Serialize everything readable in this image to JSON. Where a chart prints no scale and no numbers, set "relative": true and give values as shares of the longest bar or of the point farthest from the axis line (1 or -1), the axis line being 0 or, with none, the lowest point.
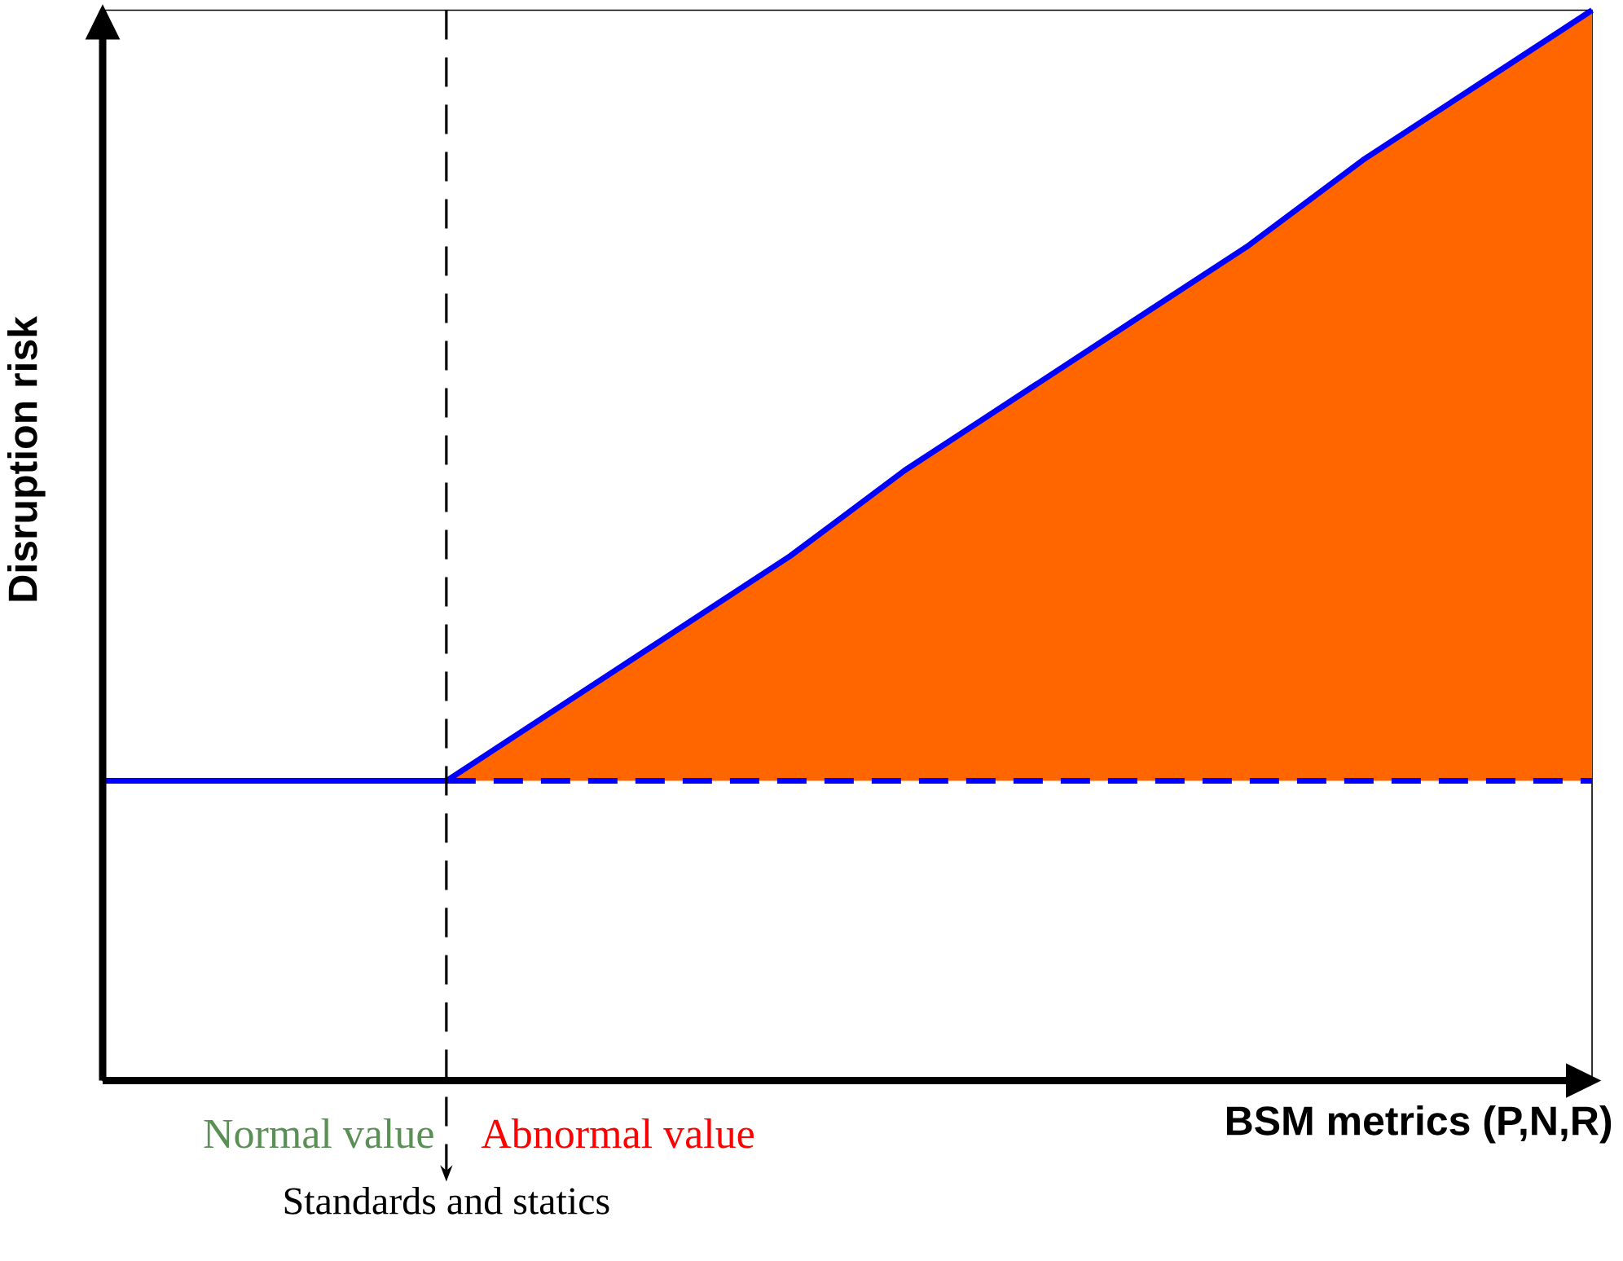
{
  "chart_data": {
    "type": "line",
    "relative": true,
    "xlabel": "BSM metrics (P,N,R)",
    "ylabel": "Disruption risk",
    "marker": "none",
    "categories": [
      null,
      null,
      null,
      null,
      null,
      null,
      null,
      null,
      null,
      null,
      null,
      null,
      null,
      null
    ],
    "series": [
      {
        "color": "#0000ff",
        "line_style": "solid",
        "values": [
          0.28,
          0.28,
          0.28,
          0.28,
          0.35,
          0.42,
          0.49,
          0.57,
          0.64,
          0.71,
          0.78,
          0.86,
          0.93,
          1
        ],
        "lower": [
          null,
          null,
          null,
          0.28,
          0.28,
          0.28,
          0.28,
          0.28,
          0.28,
          0.28,
          0.28,
          0.28,
          0.28,
          0.28
        ],
        "upper": [
          null,
          null,
          null,
          0.28,
          0.35,
          0.42,
          0.49,
          0.57,
          0.64,
          0.71,
          0.78,
          0.86,
          0.93,
          1
        ]
      },
      {
        "color": "#0000ff",
        "line_style": "dashed",
        "values": [
          null,
          null,
          null,
          0.28,
          0.28,
          0.28,
          0.28,
          0.28,
          0.28,
          0.28,
          0.28,
          0.28,
          0.28,
          0.28
        ]
      }
    ],
    "annotations": [
      "Normal value",
      "Abnormal value",
      "Standards and statics"
    ]
  }
}
